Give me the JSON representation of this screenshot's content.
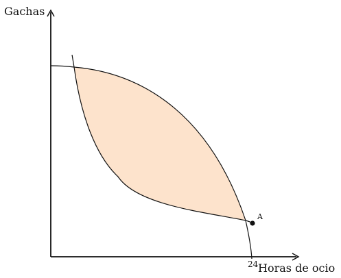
{
  "diagram": {
    "y_axis_label": "Gachas",
    "x_axis_label": "Horas de ocio",
    "x_axis_value": "24",
    "point_label": "A",
    "colors": {
      "shaded_region": "#fde3cc",
      "curves": "#111111",
      "axes": "#111111"
    }
  }
}
